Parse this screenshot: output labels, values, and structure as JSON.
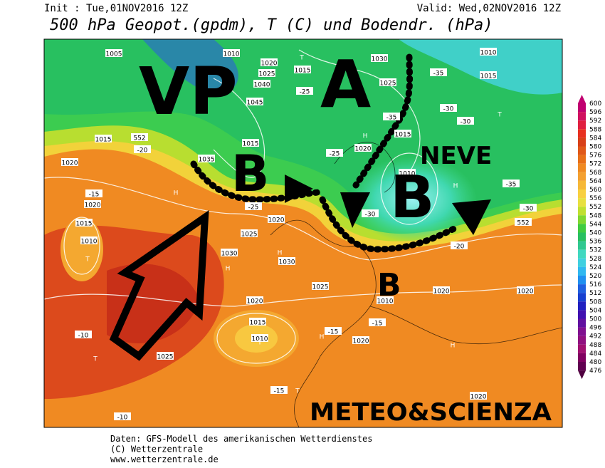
{
  "header": {
    "init": "Init : Tue,01NOV2016 12Z",
    "valid": "Valid: Wed,02NOV2016 12Z",
    "title": "500 hPa Geopot.(gpdm), T (C) und Bodendr. (hPa)"
  },
  "annotations": [
    "VP",
    "A",
    "B",
    "B",
    "B",
    "NEVE",
    "METEO&SCIENZA"
  ],
  "map_labels": [
    "1005",
    "1010",
    "1020",
    "1015",
    "1025",
    "1040",
    "1045",
    "1030",
    "1025",
    "1010",
    "1015",
    "1015",
    "1020",
    "1020",
    "1015",
    "1010",
    "1035",
    "1015",
    "1020",
    "1025",
    "1030",
    "1030",
    "1025",
    "1010",
    "1020",
    "1015",
    "1020",
    "1020",
    "1020",
    "1015",
    "1010",
    "1020",
    "1025",
    "1020",
    "1010",
    "552",
    "552",
    "-35",
    "-30",
    "-30",
    "-25",
    "-35",
    "-25",
    "-30",
    "-20",
    "-15",
    "-10",
    "-15",
    "-15",
    "-15",
    "-20",
    "-35",
    "-30",
    "-10",
    "-25",
    "T",
    "T",
    "T",
    "T",
    "T",
    "T",
    "H",
    "H",
    "H",
    "H",
    "H",
    "H",
    "H"
  ],
  "colorbar": {
    "labels": [
      600,
      596,
      592,
      588,
      584,
      580,
      576,
      572,
      568,
      564,
      560,
      556,
      552,
      548,
      544,
      540,
      536,
      532,
      528,
      524,
      520,
      516,
      512,
      508,
      504,
      500,
      496,
      492,
      488,
      484,
      480,
      476
    ]
  },
  "footer": {
    "lines": [
      "Daten: GFS-Modell des amerikanischen Wetterdienstes",
      "(C) Wetterzentrale",
      "www.wetterzentrale.de"
    ]
  }
}
